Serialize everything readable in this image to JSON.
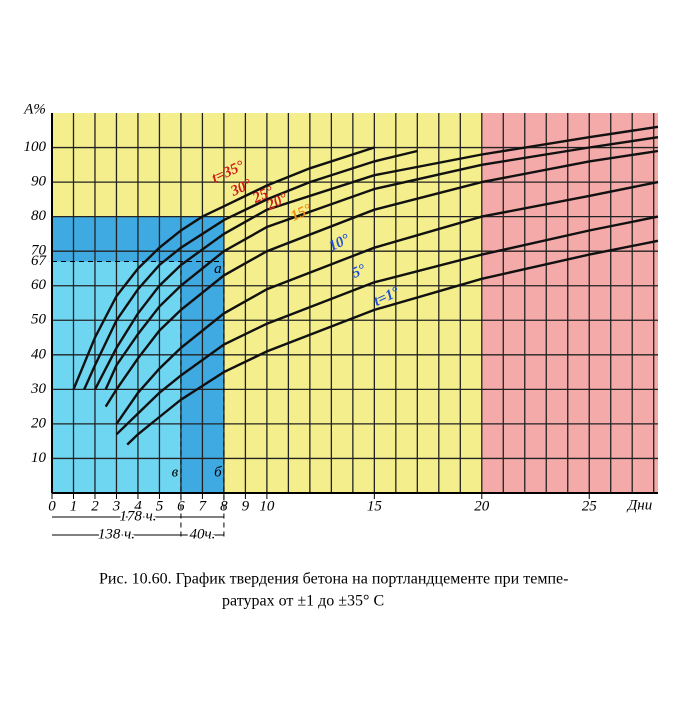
{
  "chart_data": {
    "type": "line",
    "y_label": "A%",
    "x_label": "Дни",
    "caption": [
      "Рис. 10.60. График твердения бетона на портландцементе при темпе-",
      "ратурах от ±1 до ±35° С"
    ],
    "xlim": [
      0,
      28.2
    ],
    "ylim": [
      0,
      110
    ],
    "xticks": [
      0,
      1,
      2,
      3,
      4,
      5,
      6,
      7,
      8,
      9,
      10,
      15,
      20,
      25
    ],
    "yticks": [
      10,
      20,
      30,
      40,
      50,
      60,
      70,
      80,
      90,
      100
    ],
    "grid": true,
    "regions": [
      {
        "x": [
          0,
          20
        ],
        "y": [
          0,
          110
        ],
        "color": "#f4ef8c"
      },
      {
        "x": [
          20,
          28.2
        ],
        "y": [
          0,
          110
        ],
        "color": "#f3aaa8"
      },
      {
        "x": [
          0,
          8
        ],
        "y": [
          0,
          80
        ],
        "color": "#3fa9e2"
      },
      {
        "x": [
          0,
          6
        ],
        "y": [
          0,
          67
        ],
        "color": "#6fd6f2"
      }
    ],
    "ref_y": {
      "value": 67,
      "label": "67",
      "to_x": 8
    },
    "ref_x": [
      {
        "value": 6,
        "label": "в"
      },
      {
        "value": 8,
        "label": "б"
      }
    ],
    "point_label": {
      "x": 8,
      "y": 67,
      "label": "а"
    },
    "spans": [
      {
        "from": 0,
        "to": 8,
        "label": "178 ч."
      },
      {
        "from": 0,
        "to": 6,
        "label": "138 ч."
      },
      {
        "from": 6,
        "to": 8,
        "label": "40ч."
      }
    ],
    "series": [
      {
        "name": "t=35°",
        "color": "#d01a1a",
        "x": [
          1,
          2,
          3,
          4,
          5,
          6,
          7,
          8,
          10,
          12,
          15
        ],
        "values": [
          30,
          45,
          57,
          65,
          71,
          76,
          80,
          83,
          89,
          94,
          100
        ]
      },
      {
        "name": "30°",
        "color": "#d01a1a",
        "x": [
          1.5,
          2,
          3,
          4,
          5,
          6,
          8,
          10,
          12,
          15,
          17
        ],
        "values": [
          30,
          37,
          50,
          59,
          66,
          71,
          79,
          85,
          90,
          96,
          99
        ]
      },
      {
        "name": "25°",
        "color": "#d01a1a",
        "x": [
          2,
          3,
          4,
          5,
          6,
          8,
          10,
          15,
          20,
          25,
          28.2
        ],
        "values": [
          30,
          42,
          52,
          60,
          66,
          75,
          82,
          92,
          98,
          103,
          106
        ]
      },
      {
        "name": "20°",
        "color": "#d01a1a",
        "x": [
          2.5,
          3,
          4,
          5,
          6,
          8,
          10,
          15,
          20,
          25,
          28.2
        ],
        "values": [
          30,
          37,
          46,
          54,
          60,
          70,
          77,
          88,
          95,
          100,
          103
        ]
      },
      {
        "name": "15°",
        "color": "#f08a10",
        "x": [
          2.5,
          3,
          4,
          5,
          6,
          8,
          10,
          15,
          20,
          25,
          28.2
        ],
        "values": [
          25,
          30,
          39,
          47,
          53,
          63,
          70,
          82,
          90,
          96,
          99
        ]
      },
      {
        "name": "10°",
        "color": "#2050d8",
        "x": [
          3,
          4,
          5,
          6,
          8,
          10,
          15,
          20,
          25,
          28.2
        ],
        "values": [
          20,
          29,
          36,
          42,
          52,
          59,
          71,
          80,
          86,
          90
        ]
      },
      {
        "name": "5°",
        "color": "#2050d8",
        "x": [
          3,
          4,
          5,
          6,
          8,
          10,
          15,
          20,
          25,
          28.2
        ],
        "values": [
          17,
          23,
          29,
          34,
          43,
          49,
          61,
          69,
          76,
          80
        ]
      },
      {
        "name": "t=1°",
        "color": "#2050d8",
        "x": [
          3.5,
          4,
          5,
          6,
          8,
          10,
          15,
          20,
          25,
          28.2
        ],
        "values": [
          14,
          17,
          22,
          27,
          35,
          41,
          53,
          62,
          69,
          73
        ]
      }
    ]
  }
}
